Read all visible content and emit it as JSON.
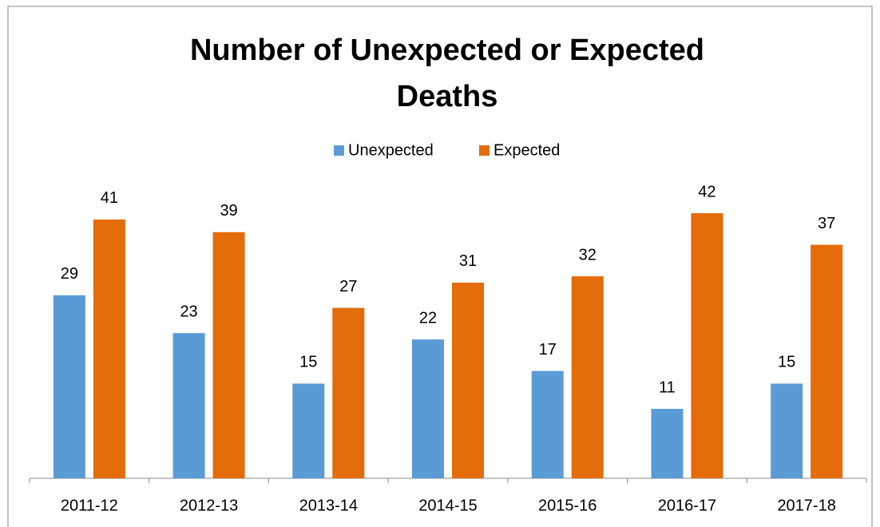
{
  "chart_data": {
    "type": "bar",
    "title": "Number of Unexpected or Expected Deaths",
    "categories": [
      "2011-12",
      "2012-13",
      "2013-14",
      "2014-15",
      "2015-16",
      "2016-17",
      "2017-18"
    ],
    "series": [
      {
        "name": "Unexpected",
        "color": "#5b9bd5",
        "values": [
          29,
          23,
          15,
          22,
          17,
          11,
          15
        ]
      },
      {
        "name": "Expected",
        "color": "#e46c0a",
        "values": [
          41,
          39,
          27,
          31,
          32,
          42,
          37
        ]
      }
    ],
    "legend": "top",
    "grid": false
  }
}
